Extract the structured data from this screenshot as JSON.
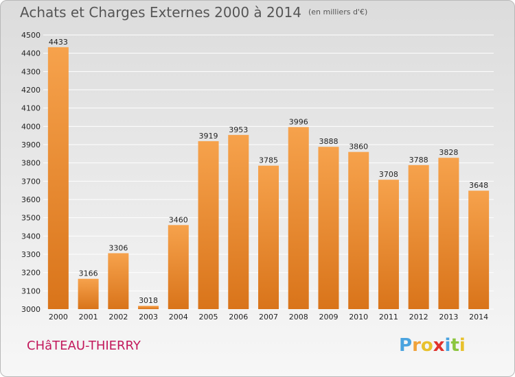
{
  "title": "Achats et Charges Externes 2000 à 2014",
  "unit": "(en milliers d'€)",
  "commune": "CHâTEAU-THIERRY",
  "logo": {
    "text": "Proxiti",
    "letters": [
      {
        "char": "P",
        "color": "#4aa3df"
      },
      {
        "char": "r",
        "color": "#f0a23a"
      },
      {
        "char": "o",
        "color": "#e8c12c"
      },
      {
        "char": "x",
        "color": "#e0322c"
      },
      {
        "char": "i",
        "color": "#4aa3df"
      },
      {
        "char": "t",
        "color": "#8cc63f"
      },
      {
        "char": "i",
        "color": "#e8c12c"
      }
    ]
  },
  "colors": {
    "bar_top": "#f6a24c",
    "bar_bottom": "#d9741a",
    "grid": "#ffffff",
    "title": "#555555",
    "commune": "#c2185b"
  },
  "chart_data": {
    "type": "bar",
    "title": "Achats et Charges Externes 2000 à 2014",
    "unit": "(en milliers d'€)",
    "categories": [
      "2000",
      "2001",
      "2002",
      "2003",
      "2004",
      "2005",
      "2006",
      "2007",
      "2008",
      "2009",
      "2010",
      "2011",
      "2012",
      "2013",
      "2014"
    ],
    "values": [
      4433,
      3166,
      3306,
      3018,
      3460,
      3919,
      3953,
      3785,
      3996,
      3888,
      3860,
      3708,
      3788,
      3828,
      3648
    ],
    "ylim": [
      3000,
      4500
    ],
    "yticks": [
      3000,
      3100,
      3200,
      3300,
      3400,
      3500,
      3600,
      3700,
      3800,
      3900,
      4000,
      4100,
      4200,
      4300,
      4400,
      4500
    ],
    "grid": true,
    "data_labels": true
  }
}
